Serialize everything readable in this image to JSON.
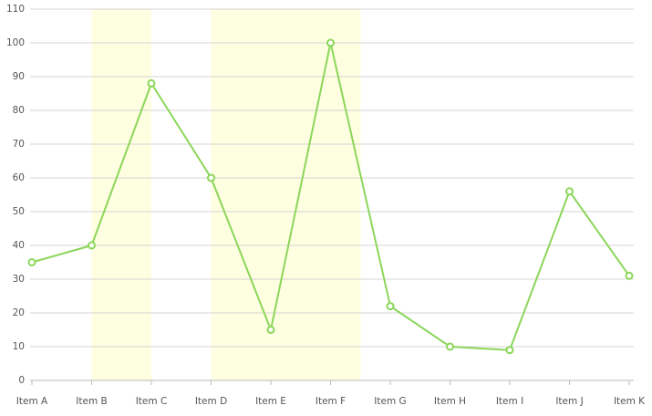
{
  "chart_data": {
    "type": "line",
    "categories": [
      "Item A",
      "Item B",
      "Item C",
      "Item D",
      "Item E",
      "Item F",
      "Item G",
      "Item H",
      "Item I",
      "Item J",
      "Item K"
    ],
    "series": [
      {
        "color": "#8cd65a",
        "values": [
          35,
          40,
          88,
          60,
          15,
          100,
          22,
          10,
          9,
          56,
          31
        ]
      }
    ],
    "ylim": [
      0,
      110
    ],
    "yticks": [
      0,
      10,
      20,
      30,
      40,
      50,
      60,
      70,
      80,
      90,
      100,
      110
    ],
    "grid": true,
    "bands": [
      {
        "from": 1,
        "to": 2
      },
      {
        "from": 3,
        "to": 5.5
      }
    ],
    "band_color": "#fefee0"
  }
}
